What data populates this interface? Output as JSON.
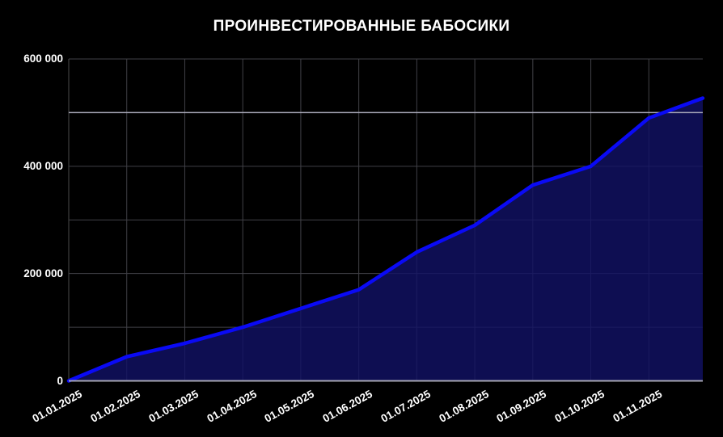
{
  "title": "ПРОИНВЕСТИРОВАННЫЕ БАБОСИКИ",
  "chart_data": {
    "type": "area",
    "title": "ПРОИНВЕСТИРОВАННЫЕ БАБОСИКИ",
    "x": [
      "01.01.2025",
      "01.02.2025",
      "01.03.2025",
      "01.04.2025",
      "01.05.2025",
      "01.06.2025",
      "01.07.2025",
      "01.08.2025",
      "01.09.2025",
      "01.10.2025",
      "01.11.2025"
    ],
    "values": [
      0,
      45000,
      70000,
      100000,
      135000,
      170000,
      240000,
      290000,
      365000,
      400000,
      490000
    ],
    "end_point": {
      "value": 527000,
      "offset_months_after_last_label": 0.93
    },
    "xlabel": "",
    "ylabel": "",
    "ylim": [
      0,
      600000
    ],
    "grid": true,
    "grid_step": 100000,
    "ytick_labels": [
      "0",
      "200 000",
      "400 000",
      "600 000"
    ],
    "ytick_label_values": [
      0,
      200000,
      400000,
      600000
    ],
    "highlight_gridline_value": 500000,
    "legend_position": "none",
    "x_label_rotation_deg": -29,
    "colors": {
      "background": "#000000",
      "line": "#0a0af5",
      "fill": "#121267",
      "gridline": "#414147",
      "highlight_gridline": "#a8a8b8",
      "axis_line": "#a7a7b4",
      "plot_border": "#4a4a4a",
      "text": "#ffffff"
    }
  }
}
